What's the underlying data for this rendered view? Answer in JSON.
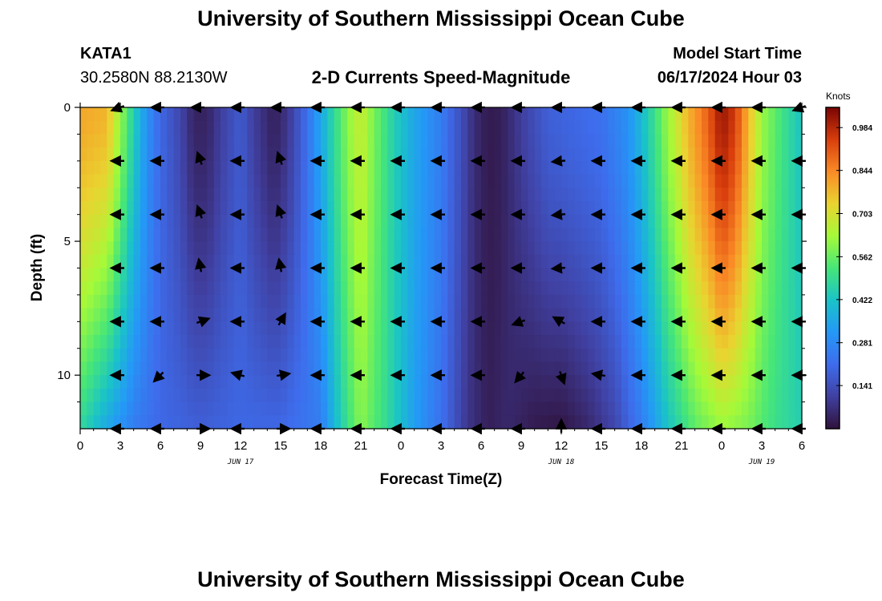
{
  "header": {
    "title": "University of Southern Mississippi Ocean Cube",
    "station_id": "KATA1",
    "station_coords": "30.2580N  88.2130W",
    "subtitle": "2-D Currents Speed-Magnitude",
    "start_label": "Model Start Time",
    "start_value": "06/17/2024 Hour 03"
  },
  "footer": {
    "title": "University of Southern Mississippi Ocean Cube"
  },
  "chart_data": {
    "type": "heatmap",
    "xlabel": "Forecast Time(Z)",
    "ylabel": "Depth (ft)",
    "x_ticks": [
      "0",
      "3",
      "6",
      "9",
      "12",
      "15",
      "18",
      "21",
      "0",
      "3",
      "6",
      "9",
      "12",
      "15",
      "18",
      "21",
      "0",
      "3",
      "6"
    ],
    "x_range_hours": [
      0,
      54
    ],
    "date_labels": [
      {
        "text": "JUN 17",
        "hour": 12
      },
      {
        "text": "JUN 18",
        "hour": 36
      },
      {
        "text": "JUN 19",
        "hour": 51
      }
    ],
    "y_ticks": [
      "0",
      "5",
      "10"
    ],
    "y_range_ft": [
      0,
      12
    ],
    "colorbar": {
      "unit": "Knots",
      "min": 0.0,
      "max": 1.05,
      "tick_values": [
        0.141,
        0.281,
        0.422,
        0.562,
        0.703,
        0.844,
        0.984
      ],
      "tick_labels": [
        "0.141",
        "0.281",
        "0.422",
        "0.562",
        "0.703",
        "0.844",
        "0.984"
      ]
    },
    "surface_speed_profile": [
      {
        "hour": 0,
        "speed": 0.8
      },
      {
        "hour": 2,
        "speed": 0.78
      },
      {
        "hour": 3,
        "speed": 0.62
      },
      {
        "hour": 4,
        "speed": 0.45
      },
      {
        "hour": 5,
        "speed": 0.3
      },
      {
        "hour": 6,
        "speed": 0.2
      },
      {
        "hour": 7.5,
        "speed": 0.12
      },
      {
        "hour": 8.5,
        "speed": 0.04
      },
      {
        "hour": 9.5,
        "speed": 0.04
      },
      {
        "hour": 10.5,
        "speed": 0.1
      },
      {
        "hour": 12,
        "speed": 0.17
      },
      {
        "hour": 13,
        "speed": 0.1
      },
      {
        "hour": 14.5,
        "speed": 0.03
      },
      {
        "hour": 15.5,
        "speed": 0.08
      },
      {
        "hour": 17,
        "speed": 0.22
      },
      {
        "hour": 18.5,
        "speed": 0.42
      },
      {
        "hour": 20,
        "speed": 0.6
      },
      {
        "hour": 21,
        "speed": 0.68
      },
      {
        "hour": 22,
        "speed": 0.58
      },
      {
        "hour": 23.5,
        "speed": 0.45
      },
      {
        "hour": 25,
        "speed": 0.35
      },
      {
        "hour": 27,
        "speed": 0.25
      },
      {
        "hour": 28.5,
        "speed": 0.14
      },
      {
        "hour": 29.5,
        "speed": 0.06
      },
      {
        "hour": 30.5,
        "speed": 0.02
      },
      {
        "hour": 31.5,
        "speed": 0.03
      },
      {
        "hour": 33,
        "speed": 0.1
      },
      {
        "hour": 35,
        "speed": 0.18
      },
      {
        "hour": 37,
        "speed": 0.2
      },
      {
        "hour": 39,
        "speed": 0.22
      },
      {
        "hour": 41,
        "speed": 0.3
      },
      {
        "hour": 42.5,
        "speed": 0.45
      },
      {
        "hour": 44,
        "speed": 0.62
      },
      {
        "hour": 45.5,
        "speed": 0.78
      },
      {
        "hour": 47,
        "speed": 0.9
      },
      {
        "hour": 48,
        "speed": 1.02
      },
      {
        "hour": 49,
        "speed": 0.95
      },
      {
        "hour": 50,
        "speed": 0.78
      },
      {
        "hour": 51,
        "speed": 0.62
      },
      {
        "hour": 52,
        "speed": 0.55
      },
      {
        "hour": 53,
        "speed": 0.48
      },
      {
        "hour": 54,
        "speed": 0.42
      }
    ],
    "bottom_speed_profile": [
      {
        "hour": 0,
        "speed": 0.48
      },
      {
        "hour": 2,
        "speed": 0.35
      },
      {
        "hour": 4,
        "speed": 0.25
      },
      {
        "hour": 6,
        "speed": 0.2
      },
      {
        "hour": 9,
        "speed": 0.18
      },
      {
        "hour": 12,
        "speed": 0.2
      },
      {
        "hour": 15,
        "speed": 0.2
      },
      {
        "hour": 18,
        "speed": 0.25
      },
      {
        "hour": 19.5,
        "speed": 0.45
      },
      {
        "hour": 21,
        "speed": 0.6
      },
      {
        "hour": 23,
        "speed": 0.48
      },
      {
        "hour": 25,
        "speed": 0.33
      },
      {
        "hour": 27,
        "speed": 0.22
      },
      {
        "hour": 29,
        "speed": 0.08
      },
      {
        "hour": 30.5,
        "speed": 0.03
      },
      {
        "hour": 32,
        "speed": 0.05
      },
      {
        "hour": 34,
        "speed": 0.02
      },
      {
        "hour": 36,
        "speed": 0.01
      },
      {
        "hour": 38,
        "speed": 0.05
      },
      {
        "hour": 40,
        "speed": 0.12
      },
      {
        "hour": 42,
        "speed": 0.25
      },
      {
        "hour": 44,
        "speed": 0.42
      },
      {
        "hour": 46,
        "speed": 0.55
      },
      {
        "hour": 48,
        "speed": 0.62
      },
      {
        "hour": 50,
        "speed": 0.58
      },
      {
        "hour": 52,
        "speed": 0.5
      },
      {
        "hour": 54,
        "speed": 0.45
      }
    ],
    "vectors": {
      "x_hours": [
        3,
        6,
        9,
        12,
        15,
        18,
        21,
        24,
        27,
        30,
        33,
        36,
        39,
        42,
        45,
        48,
        51,
        54
      ],
      "depths_ft": [
        0,
        2,
        4,
        6,
        8,
        10,
        12
      ],
      "direction_note": "arrows point toward flow; mostly westward",
      "angles_deg": [
        [
          200,
          180,
          180,
          180,
          180,
          180,
          180,
          180,
          180,
          180,
          180,
          180,
          180,
          180,
          180,
          180,
          180,
          200
        ],
        [
          180,
          180,
          110,
          180,
          110,
          180,
          180,
          180,
          180,
          180,
          180,
          185,
          180,
          180,
          180,
          180,
          180,
          180
        ],
        [
          180,
          180,
          110,
          180,
          110,
          180,
          180,
          180,
          180,
          180,
          180,
          185,
          180,
          180,
          180,
          180,
          180,
          180
        ],
        [
          180,
          180,
          100,
          180,
          100,
          180,
          180,
          180,
          180,
          180,
          180,
          185,
          180,
          180,
          180,
          180,
          180,
          180
        ],
        [
          180,
          180,
          20,
          180,
          60,
          180,
          180,
          180,
          180,
          180,
          200,
          150,
          180,
          180,
          180,
          180,
          180,
          180
        ],
        [
          180,
          225,
          0,
          165,
          10,
          180,
          180,
          180,
          180,
          180,
          230,
          290,
          170,
          180,
          180,
          180,
          180,
          180
        ],
        [
          180,
          180,
          0,
          180,
          0,
          180,
          180,
          180,
          180,
          180,
          180,
          90,
          180,
          180,
          180,
          180,
          180,
          180
        ]
      ]
    },
    "grid": false
  }
}
